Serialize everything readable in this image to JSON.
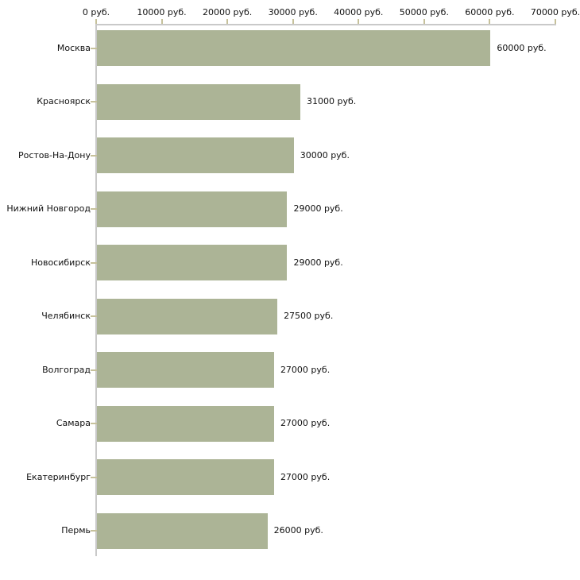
{
  "chart_data": {
    "type": "bar",
    "orientation": "horizontal",
    "grid": "off",
    "legend": "none",
    "xlim": [
      0,
      70000
    ],
    "x_ticks": [
      0,
      10000,
      20000,
      30000,
      40000,
      50000,
      60000,
      70000
    ],
    "x_tick_labels": [
      "0 руб.",
      "10000 руб.",
      "20000 руб.",
      "30000 руб.",
      "40000 руб.",
      "50000 руб.",
      "60000 руб.",
      "70000 руб."
    ],
    "categories": [
      "Москва",
      "Красноярск",
      "Ростов-На-Дону",
      "Нижний Новгород",
      "Новосибирск",
      "Челябинск",
      "Волгоград",
      "Самара",
      "Екатеринбург",
      "Пермь"
    ],
    "values": [
      60000,
      31000,
      30000,
      29000,
      29000,
      27500,
      27000,
      27000,
      27000,
      26000
    ],
    "value_labels": [
      "60000 руб.",
      "31000 руб.",
      "30000 руб.",
      "29000 руб.",
      "29000 руб.",
      "27500 руб.",
      "27000 руб.",
      "27000 руб.",
      "27000 руб.",
      "26000 руб."
    ],
    "colors": {
      "bar": "#acb496",
      "axis_line": "#c9c9c9",
      "tick_mark": "#c6c19b",
      "text": "#111111",
      "background": "#ffffff"
    }
  }
}
